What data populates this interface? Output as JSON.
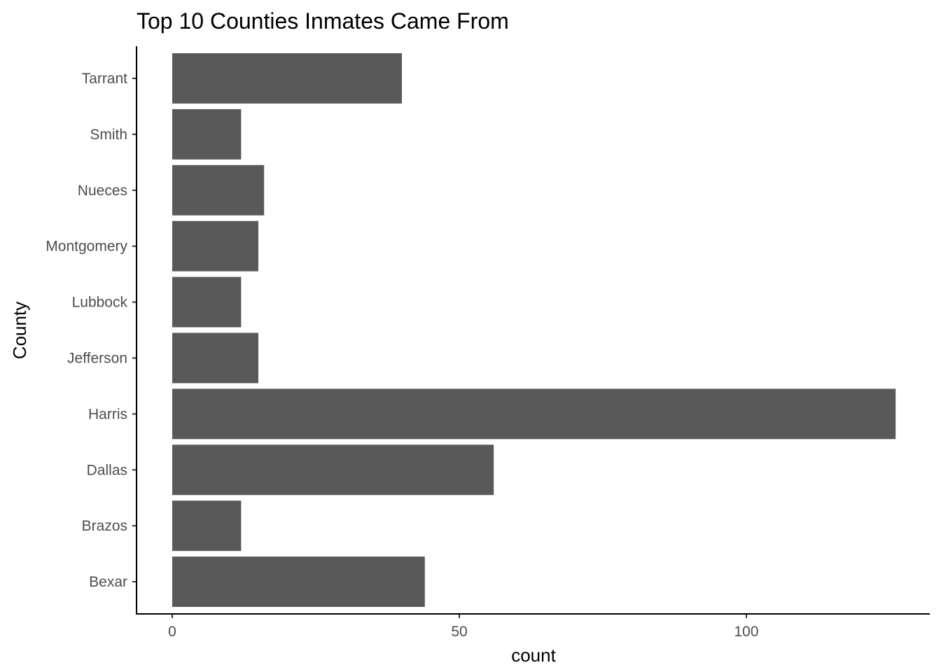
{
  "chart_data": {
    "type": "bar",
    "orientation": "horizontal",
    "title": "Top 10 Counties Inmates Came From",
    "xlabel": "count",
    "ylabel": "County",
    "categories": [
      "Bexar",
      "Brazos",
      "Dallas",
      "Harris",
      "Jefferson",
      "Lubbock",
      "Montgomery",
      "Nueces",
      "Smith",
      "Tarrant"
    ],
    "values": [
      44,
      12,
      56,
      126,
      15,
      12,
      15,
      16,
      12,
      40
    ],
    "xlim": [
      0,
      130
    ],
    "xticks": [
      0,
      50,
      100
    ],
    "xtick_labels": [
      "0",
      "50",
      "100"
    ],
    "bar_color": "#595959",
    "grid": false,
    "legend": "none"
  }
}
